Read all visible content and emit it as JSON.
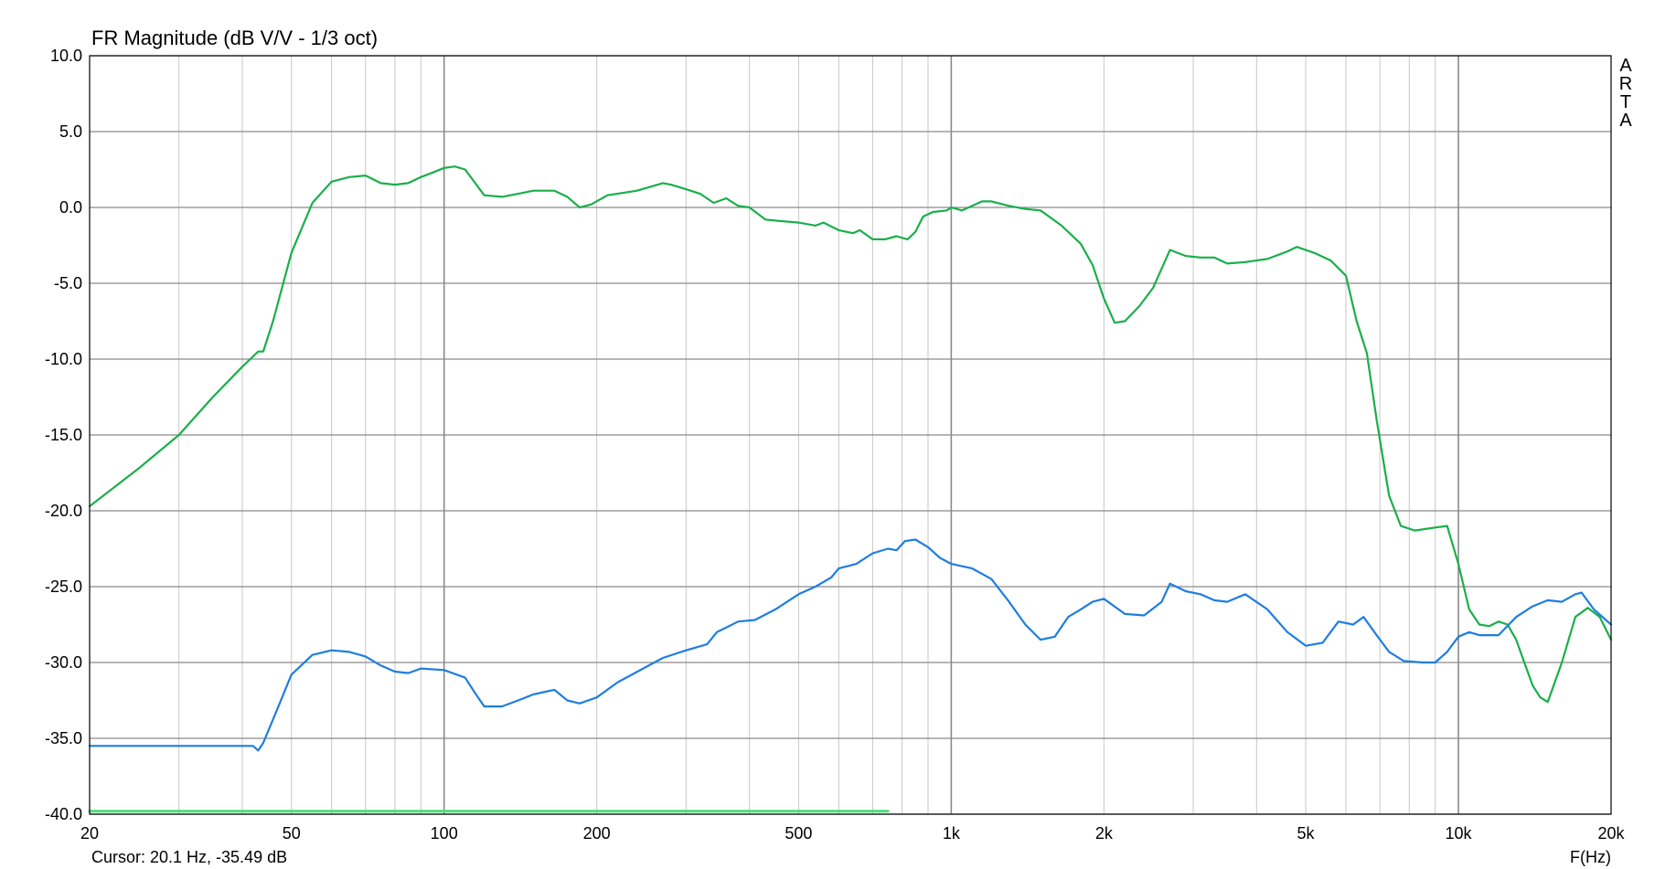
{
  "chart_data": {
    "type": "line",
    "title": "FR Magnitude (dB V/V - 1/3 oct)",
    "xlabel": "F(Hz)",
    "x_scale": "log",
    "xlim": [
      20,
      20000
    ],
    "ylim": [
      -40,
      10
    ],
    "grid": true,
    "y_ticks": [
      {
        "value": 10,
        "label": "10.0"
      },
      {
        "value": 5,
        "label": "5.0"
      },
      {
        "value": 0,
        "label": "0.0"
      },
      {
        "value": -5,
        "label": "-5.0"
      },
      {
        "value": -10,
        "label": "-10.0"
      },
      {
        "value": -15,
        "label": "-15.0"
      },
      {
        "value": -20,
        "label": "-20.0"
      },
      {
        "value": -25,
        "label": "-25.0"
      },
      {
        "value": -30,
        "label": "-30.0"
      },
      {
        "value": -35,
        "label": "-35.0"
      },
      {
        "value": -40,
        "label": "-40.0"
      }
    ],
    "x_ticks": [
      {
        "value": 20,
        "label": "20"
      },
      {
        "value": 50,
        "label": "50"
      },
      {
        "value": 100,
        "label": "100"
      },
      {
        "value": 200,
        "label": "200"
      },
      {
        "value": 500,
        "label": "500"
      },
      {
        "value": 1000,
        "label": "1k"
      },
      {
        "value": 2000,
        "label": "2k"
      },
      {
        "value": 5000,
        "label": "5k"
      },
      {
        "value": 10000,
        "label": "10k"
      },
      {
        "value": 20000,
        "label": "20k"
      }
    ],
    "series": [
      {
        "color": "#1aaf4a",
        "points": [
          [
            20,
            -19.7
          ],
          [
            25,
            -17.2
          ],
          [
            30,
            -15.0
          ],
          [
            35,
            -12.5
          ],
          [
            40,
            -10.5
          ],
          [
            43,
            -9.5
          ],
          [
            44,
            -9.5
          ],
          [
            46,
            -7.5
          ],
          [
            50,
            -3.0
          ],
          [
            55,
            0.3
          ],
          [
            60,
            1.7
          ],
          [
            65,
            2.0
          ],
          [
            70,
            2.1
          ],
          [
            75,
            1.6
          ],
          [
            80,
            1.5
          ],
          [
            85,
            1.6
          ],
          [
            90,
            2.0
          ],
          [
            95,
            2.3
          ],
          [
            100,
            2.6
          ],
          [
            105,
            2.7
          ],
          [
            110,
            2.5
          ],
          [
            120,
            0.8
          ],
          [
            130,
            0.7
          ],
          [
            140,
            0.9
          ],
          [
            150,
            1.1
          ],
          [
            165,
            1.1
          ],
          [
            175,
            0.7
          ],
          [
            185,
            0.0
          ],
          [
            195,
            0.2
          ],
          [
            210,
            0.8
          ],
          [
            240,
            1.1
          ],
          [
            270,
            1.6
          ],
          [
            280,
            1.5
          ],
          [
            300,
            1.2
          ],
          [
            320,
            0.9
          ],
          [
            340,
            0.3
          ],
          [
            360,
            0.6
          ],
          [
            380,
            0.1
          ],
          [
            400,
            0.0
          ],
          [
            430,
            -0.8
          ],
          [
            460,
            -0.9
          ],
          [
            500,
            -1.0
          ],
          [
            540,
            -1.2
          ],
          [
            560,
            -1.0
          ],
          [
            600,
            -1.5
          ],
          [
            640,
            -1.7
          ],
          [
            660,
            -1.5
          ],
          [
            700,
            -2.1
          ],
          [
            740,
            -2.1
          ],
          [
            780,
            -1.9
          ],
          [
            820,
            -2.1
          ],
          [
            850,
            -1.6
          ],
          [
            880,
            -0.6
          ],
          [
            920,
            -0.3
          ],
          [
            980,
            -0.2
          ],
          [
            1000,
            0.0
          ],
          [
            1050,
            -0.2
          ],
          [
            1100,
            0.1
          ],
          [
            1150,
            0.4
          ],
          [
            1200,
            0.4
          ],
          [
            1300,
            0.1
          ],
          [
            1400,
            -0.1
          ],
          [
            1500,
            -0.2
          ],
          [
            1650,
            -1.2
          ],
          [
            1800,
            -2.4
          ],
          [
            1900,
            -3.8
          ],
          [
            2000,
            -6.0
          ],
          [
            2100,
            -7.6
          ],
          [
            2200,
            -7.5
          ],
          [
            2350,
            -6.5
          ],
          [
            2500,
            -5.3
          ],
          [
            2700,
            -2.8
          ],
          [
            2900,
            -3.2
          ],
          [
            3100,
            -3.3
          ],
          [
            3300,
            -3.3
          ],
          [
            3500,
            -3.7
          ],
          [
            3800,
            -3.6
          ],
          [
            4200,
            -3.4
          ],
          [
            4600,
            -2.9
          ],
          [
            4800,
            -2.6
          ],
          [
            5200,
            -3.0
          ],
          [
            5600,
            -3.5
          ],
          [
            6000,
            -4.5
          ],
          [
            6300,
            -7.5
          ],
          [
            6600,
            -9.6
          ],
          [
            6900,
            -14.0
          ],
          [
            7300,
            -19.0
          ],
          [
            7700,
            -21.0
          ],
          [
            8200,
            -21.3
          ],
          [
            9000,
            -21.1
          ],
          [
            9500,
            -21.0
          ],
          [
            10000,
            -23.5
          ],
          [
            10500,
            -26.5
          ],
          [
            11000,
            -27.5
          ],
          [
            11500,
            -27.6
          ],
          [
            12000,
            -27.3
          ],
          [
            12500,
            -27.5
          ],
          [
            13000,
            -28.5
          ],
          [
            14000,
            -31.5
          ],
          [
            14500,
            -32.3
          ],
          [
            15000,
            -32.6
          ],
          [
            16000,
            -30.0
          ],
          [
            17000,
            -27.0
          ],
          [
            18000,
            -26.4
          ],
          [
            19000,
            -27.0
          ],
          [
            20000,
            -28.5
          ]
        ]
      },
      {
        "color": "#1e7ee0",
        "points": [
          [
            20,
            -35.5
          ],
          [
            42,
            -35.5
          ],
          [
            43,
            -35.8
          ],
          [
            44,
            -35.3
          ],
          [
            47,
            -33.0
          ],
          [
            50,
            -30.8
          ],
          [
            55,
            -29.5
          ],
          [
            60,
            -29.2
          ],
          [
            65,
            -29.3
          ],
          [
            70,
            -29.6
          ],
          [
            75,
            -30.2
          ],
          [
            80,
            -30.6
          ],
          [
            85,
            -30.7
          ],
          [
            90,
            -30.4
          ],
          [
            100,
            -30.5
          ],
          [
            110,
            -31.0
          ],
          [
            115,
            -32.0
          ],
          [
            120,
            -32.9
          ],
          [
            130,
            -32.9
          ],
          [
            140,
            -32.5
          ],
          [
            150,
            -32.1
          ],
          [
            160,
            -31.9
          ],
          [
            165,
            -31.8
          ],
          [
            175,
            -32.5
          ],
          [
            185,
            -32.7
          ],
          [
            200,
            -32.3
          ],
          [
            220,
            -31.3
          ],
          [
            250,
            -30.3
          ],
          [
            270,
            -29.7
          ],
          [
            300,
            -29.2
          ],
          [
            330,
            -28.8
          ],
          [
            345,
            -28.0
          ],
          [
            360,
            -27.7
          ],
          [
            380,
            -27.3
          ],
          [
            410,
            -27.2
          ],
          [
            450,
            -26.5
          ],
          [
            500,
            -25.5
          ],
          [
            540,
            -25.0
          ],
          [
            580,
            -24.4
          ],
          [
            600,
            -23.8
          ],
          [
            650,
            -23.5
          ],
          [
            700,
            -22.8
          ],
          [
            750,
            -22.5
          ],
          [
            780,
            -22.6
          ],
          [
            810,
            -22.0
          ],
          [
            850,
            -21.9
          ],
          [
            900,
            -22.4
          ],
          [
            950,
            -23.1
          ],
          [
            1000,
            -23.5
          ],
          [
            1100,
            -23.8
          ],
          [
            1200,
            -24.5
          ],
          [
            1300,
            -26.0
          ],
          [
            1400,
            -27.5
          ],
          [
            1500,
            -28.5
          ],
          [
            1600,
            -28.3
          ],
          [
            1700,
            -27.0
          ],
          [
            1800,
            -26.5
          ],
          [
            1900,
            -26.0
          ],
          [
            2000,
            -25.8
          ],
          [
            2200,
            -26.8
          ],
          [
            2400,
            -26.9
          ],
          [
            2600,
            -26.0
          ],
          [
            2700,
            -24.8
          ],
          [
            2900,
            -25.3
          ],
          [
            3100,
            -25.5
          ],
          [
            3300,
            -25.9
          ],
          [
            3500,
            -26.0
          ],
          [
            3800,
            -25.5
          ],
          [
            4200,
            -26.5
          ],
          [
            4600,
            -28.0
          ],
          [
            5000,
            -28.9
          ],
          [
            5400,
            -28.7
          ],
          [
            5800,
            -27.3
          ],
          [
            6200,
            -27.5
          ],
          [
            6500,
            -27.0
          ],
          [
            6900,
            -28.2
          ],
          [
            7300,
            -29.3
          ],
          [
            7800,
            -29.9
          ],
          [
            8500,
            -30.0
          ],
          [
            9000,
            -30.0
          ],
          [
            9500,
            -29.3
          ],
          [
            10000,
            -28.3
          ],
          [
            10500,
            -28.0
          ],
          [
            11000,
            -28.2
          ],
          [
            12000,
            -28.2
          ],
          [
            13000,
            -27.0
          ],
          [
            14000,
            -26.3
          ],
          [
            15000,
            -25.9
          ],
          [
            16000,
            -26.0
          ],
          [
            17000,
            -25.5
          ],
          [
            17500,
            -25.4
          ],
          [
            18500,
            -26.5
          ],
          [
            20000,
            -27.5
          ]
        ]
      },
      {
        "color": "#44e07a",
        "points": [
          [
            20,
            -39.8
          ],
          [
            750,
            -39.8
          ]
        ]
      }
    ]
  },
  "ui": {
    "cursor_readout": "Cursor: 20.1 Hz, -35.49 dB",
    "brand": [
      "A",
      "R",
      "T",
      "A"
    ]
  }
}
